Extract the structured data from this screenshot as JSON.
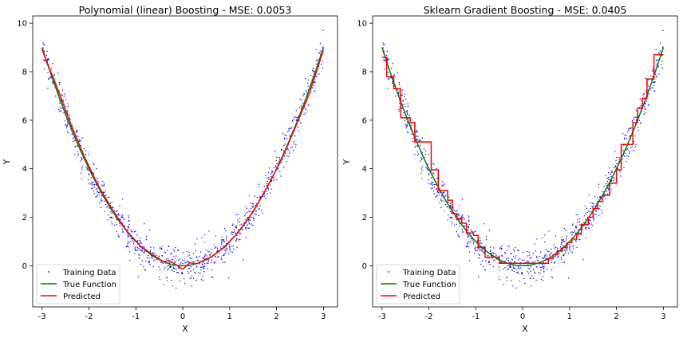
{
  "chart_data": [
    {
      "type": "scatter+line",
      "title": "Polynomial (linear) Boosting - MSE: 0.0053",
      "xlabel": "X",
      "ylabel": "Y",
      "xlim": [
        -3.2,
        3.3
      ],
      "ylim": [
        -1.7,
        10.3
      ],
      "xticks": [
        "-3",
        "-2",
        "-1",
        "0",
        "1",
        "2",
        "3"
      ],
      "yticks": [
        "0",
        "2",
        "4",
        "6",
        "8",
        "10"
      ],
      "legend_position": "lower-left",
      "legend": [
        "Training Data",
        "True Function",
        "Predicted"
      ],
      "colors": {
        "training": "#0000ff",
        "true": "#008000",
        "pred": "#ff0000"
      },
      "true_function": {
        "x": [
          -3,
          -2.5,
          -2,
          -1.5,
          -1,
          -0.5,
          0,
          0.5,
          1,
          1.5,
          2,
          2.5,
          3
        ],
        "y": [
          9,
          6.25,
          4,
          2.25,
          1,
          0.25,
          0,
          0.25,
          1,
          2.25,
          4,
          6.25,
          9
        ]
      },
      "predicted": {
        "x": [
          -3,
          -2.7,
          -2.4,
          -2.1,
          -1.8,
          -1.5,
          -1.2,
          -0.9,
          -0.6,
          -0.4,
          -0.3,
          -0.15,
          0,
          0.15,
          0.3,
          0.5,
          0.6,
          0.9,
          1.2,
          1.5,
          1.8,
          2.1,
          2.4,
          2.7,
          3
        ],
        "y": [
          8.9,
          7.45,
          5.9,
          4.5,
          3.3,
          2.3,
          1.45,
          0.8,
          0.4,
          0.15,
          0.22,
          0.05,
          -0.15,
          0.12,
          0.08,
          0.28,
          0.35,
          0.78,
          1.42,
          2.22,
          3.25,
          4.35,
          5.7,
          7.1,
          8.9
        ]
      }
    },
    {
      "type": "scatter+line",
      "title": "Sklearn Gradient Boosting - MSE: 0.0405",
      "xlabel": "X",
      "ylabel": "Y",
      "xlim": [
        -3.2,
        3.3
      ],
      "ylim": [
        -1.7,
        10.3
      ],
      "xticks": [
        "-3",
        "-2",
        "-1",
        "0",
        "1",
        "2",
        "3"
      ],
      "yticks": [
        "0",
        "2",
        "4",
        "6",
        "8",
        "10"
      ],
      "legend_position": "lower-left",
      "legend": [
        "Training Data",
        "True Function",
        "Predicted"
      ],
      "colors": {
        "training": "#0000ff",
        "true": "#008000",
        "pred": "#ff0000"
      },
      "true_function": {
        "x": [
          -3,
          -2.5,
          -2,
          -1.5,
          -1,
          -0.5,
          0,
          0.5,
          1,
          1.5,
          2,
          2.5,
          3
        ],
        "y": [
          9,
          6.25,
          4,
          2.25,
          1,
          0.25,
          0,
          0.25,
          1,
          2.25,
          4,
          6.25,
          9
        ]
      },
      "predicted_step": {
        "x": [
          -3,
          -2.9,
          -2.75,
          -2.6,
          -2.4,
          -2.3,
          -2.1,
          -1.95,
          -1.8,
          -1.6,
          -1.5,
          -1.4,
          -1.3,
          -1.2,
          -1.05,
          -0.95,
          -0.8,
          -0.5,
          0.55,
          0.65,
          0.75,
          0.85,
          0.95,
          1.05,
          1.15,
          1.25,
          1.4,
          1.5,
          1.6,
          1.7,
          1.85,
          2.0,
          2.1,
          2.35,
          2.45,
          2.55,
          2.65,
          2.8,
          2.95,
          3
        ],
        "y": [
          8.6,
          7.8,
          7.3,
          6.1,
          5.9,
          5.1,
          5.1,
          3.95,
          3.1,
          2.7,
          2.15,
          1.95,
          1.75,
          1.35,
          1.25,
          0.75,
          0.35,
          0.1,
          0.3,
          0.45,
          0.6,
          0.75,
          0.95,
          1.1,
          1.3,
          1.7,
          2.0,
          2.35,
          2.65,
          2.9,
          3.4,
          3.95,
          5.0,
          5.9,
          6.5,
          6.9,
          7.7,
          8.7,
          8.7,
          8.7
        ]
      }
    }
  ]
}
